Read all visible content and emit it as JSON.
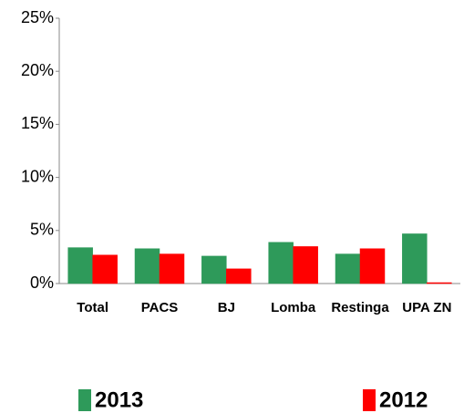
{
  "chart_data": {
    "type": "bar",
    "categories": [
      "Total",
      "PACS",
      "BJ",
      "Lomba",
      "Restinga",
      "UPA ZN"
    ],
    "series": [
      {
        "name": "2013",
        "color": "#2e9a5a",
        "values": [
          3.3,
          3.2,
          2.5,
          3.8,
          2.7,
          4.6
        ]
      },
      {
        "name": "2012",
        "color": "#ff0000",
        "values": [
          2.6,
          2.7,
          1.3,
          3.4,
          3.2,
          0
        ]
      }
    ],
    "ylim": [
      0,
      25
    ],
    "yticks": [
      {
        "value": 0,
        "label": "0%"
      },
      {
        "value": 5,
        "label": "5%"
      },
      {
        "value": 10,
        "label": "10%"
      },
      {
        "value": 15,
        "label": "15%"
      },
      {
        "value": 20,
        "label": "20%"
      },
      {
        "value": 25,
        "label": "25%"
      }
    ],
    "grid": false,
    "legend": "bottom"
  }
}
